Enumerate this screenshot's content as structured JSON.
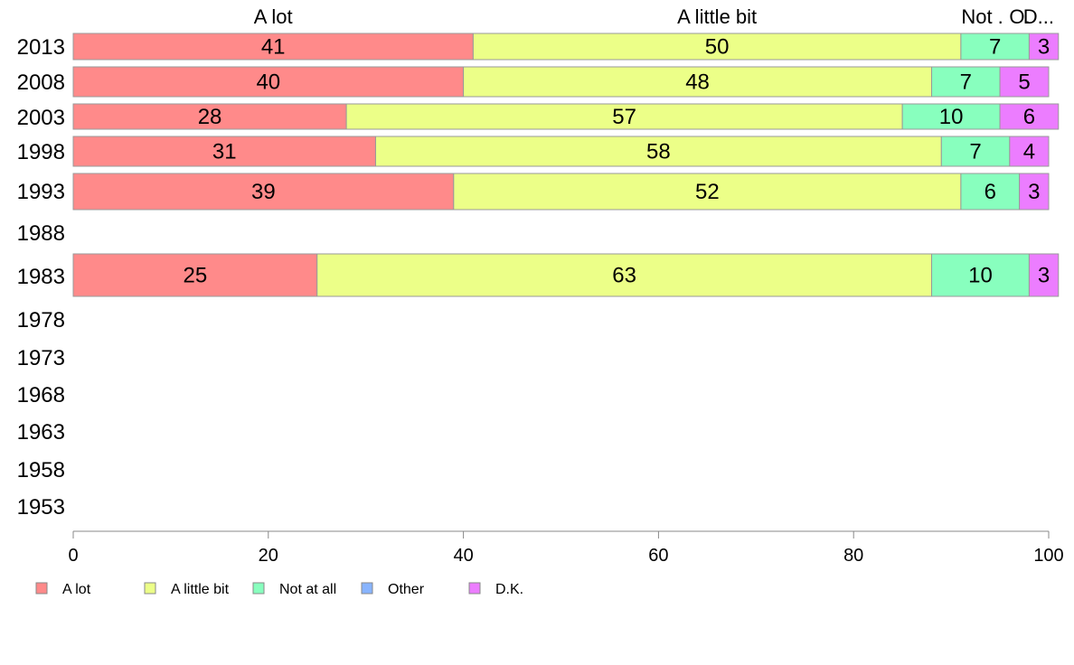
{
  "chart_data": {
    "type": "bar",
    "orientation": "horizontal",
    "stacked": true,
    "categories": [
      "2013",
      "2008",
      "2003",
      "1998",
      "1993",
      "1988",
      "1983",
      "1978",
      "1973",
      "1968",
      "1963",
      "1958",
      "1953"
    ],
    "series": [
      {
        "name": "A lot",
        "color": "#ff8a8a",
        "values": [
          41,
          40,
          28,
          31,
          39,
          null,
          25,
          null,
          null,
          null,
          null,
          null,
          null
        ]
      },
      {
        "name": "A little bit",
        "color": "#ecff88",
        "values": [
          50,
          48,
          57,
          58,
          52,
          null,
          63,
          null,
          null,
          null,
          null,
          null,
          null
        ]
      },
      {
        "name": "Not at all",
        "color": "#88ffbe",
        "values": [
          7,
          7,
          10,
          7,
          6,
          null,
          10,
          null,
          null,
          null,
          null,
          null,
          null
        ]
      },
      {
        "name": "Other",
        "color": "#88b4ff",
        "values": [
          null,
          null,
          null,
          null,
          null,
          null,
          null,
          null,
          null,
          null,
          null,
          null,
          null
        ]
      },
      {
        "name": "D.K.",
        "color": "#ec7dff",
        "values": [
          3,
          5,
          6,
          4,
          3,
          null,
          3,
          null,
          null,
          null,
          null,
          null,
          null
        ]
      }
    ],
    "top_labels": [
      "A lot",
      "A little bit",
      "Not at all",
      "Other",
      "D.K."
    ],
    "top_labels_shown": [
      "A lot",
      "A little bit",
      "Not .",
      "O.",
      "D..."
    ],
    "xlim": [
      0,
      100
    ],
    "xticks": [
      "0",
      "20",
      "40",
      "60",
      "80",
      "100"
    ],
    "grid": false,
    "legend_position": "bottom-left"
  }
}
